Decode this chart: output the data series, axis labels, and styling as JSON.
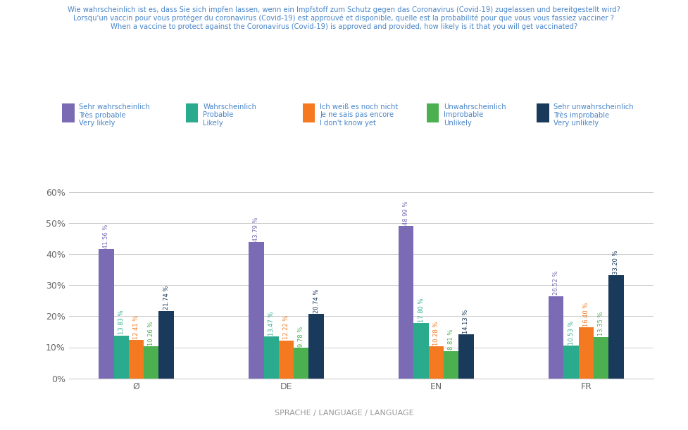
{
  "title_lines": [
    "Wie wahrscheinlich ist es, dass Sie sich impfen lassen, wenn ein Impfstoff zum Schutz gegen das Coronavirus (Covid-19) zugelassen und bereitgestellt wird?",
    "Lorsqu'un vaccin pour vous protéger du coronavirus (Covid-19) est approuvé et disponible, quelle est la probabilité pour que vous vous fassiez vacciner ?",
    "When a vaccine to protect against the Coronavirus (Covid-19) is approved and provided, how likely is it that you will get vaccinated?"
  ],
  "legend_labels": [
    [
      "Sehr wahrscheinlich",
      "Très probable",
      "Very likely"
    ],
    [
      "Wahrscheinlich",
      "Probable",
      "Likely"
    ],
    [
      "Ich weiß es noch nicht",
      "Je ne sais pas encore",
      "I don't know yet"
    ],
    [
      "Unwahrscheinlich",
      "Improbable",
      "Unlikely"
    ],
    [
      "Sehr unwahrscheinlich",
      "Très improbable",
      "Very unlikely"
    ]
  ],
  "bar_colors": [
    "#7b6bb5",
    "#2aab8e",
    "#f47920",
    "#4caf50",
    "#1a3a5c"
  ],
  "categories": [
    "Ø",
    "DE",
    "EN",
    "FR"
  ],
  "values": [
    [
      41.56,
      13.83,
      12.41,
      10.26,
      21.74
    ],
    [
      43.79,
      13.47,
      12.22,
      9.78,
      20.74
    ],
    [
      48.99,
      17.8,
      10.28,
      8.81,
      14.13
    ],
    [
      26.52,
      10.53,
      16.4,
      13.35,
      33.2
    ]
  ],
  "xlabel": "SPRACHE / LANGUAGE / LANGUAGE",
  "ylim": [
    0,
    65
  ],
  "yticks": [
    0,
    10,
    20,
    30,
    40,
    50,
    60
  ],
  "background_color": "#ffffff",
  "title_color": "#4a86c8",
  "legend_color": "#4a86c8",
  "bar_label_fontsize": 6.0,
  "xlabel_fontsize": 8,
  "title_fontsize": 7.2,
  "legend_fontsize": 7.2
}
